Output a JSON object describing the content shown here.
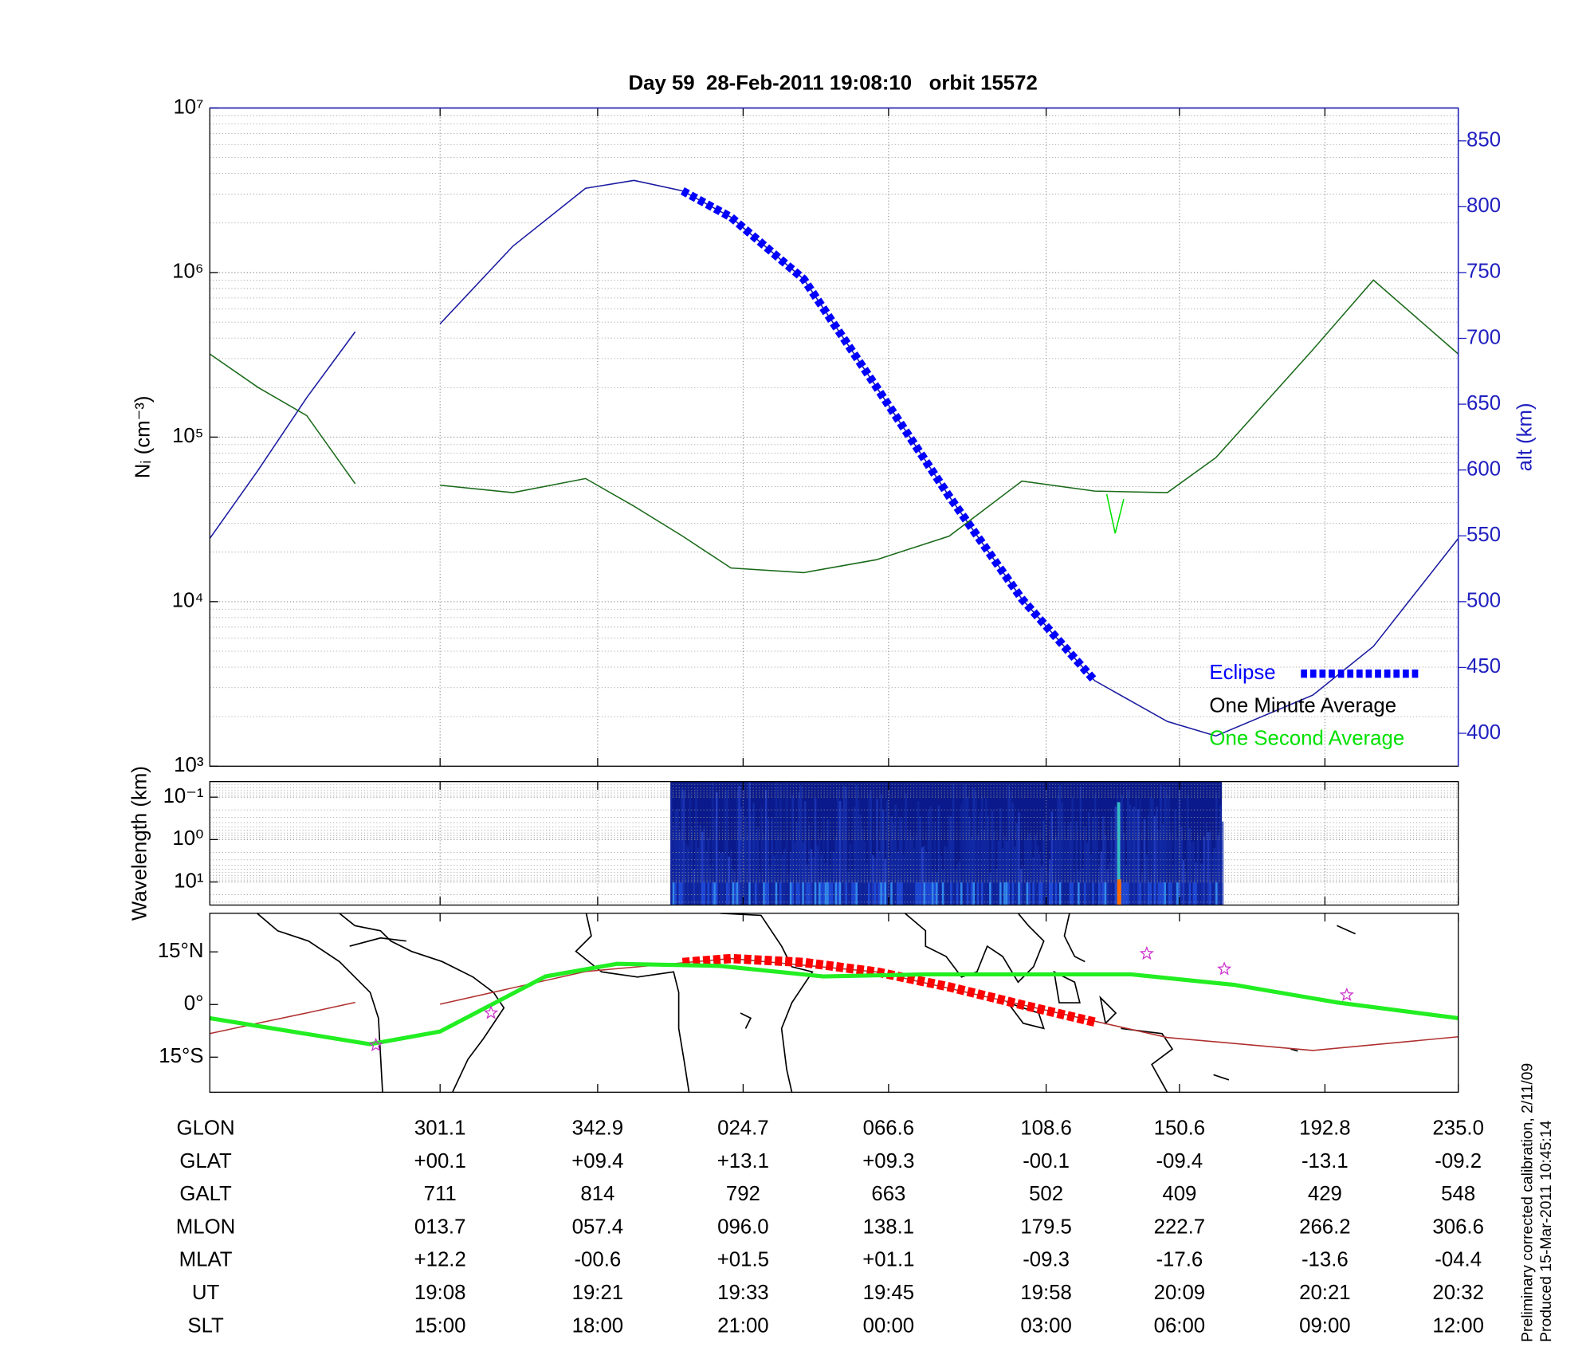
{
  "chart_data": [
    {
      "type": "line",
      "title": "Day 59  28-Feb-2011 19:08:10   orbit 15572",
      "ylabel": "Nᵢ (cm⁻³)",
      "y2label": "alt (km)",
      "log_y": true,
      "grid": true,
      "legend": "lower right",
      "xlim": [
        1129,
        1232
      ],
      "xticks": [
        {
          "value": 1148,
          "label": "19:08"
        },
        {
          "value": 1161,
          "label": "19:21"
        },
        {
          "value": 1173,
          "label": "19:33"
        },
        {
          "value": 1185,
          "label": "19:45"
        },
        {
          "value": 1198,
          "label": "19:58"
        },
        {
          "value": 1209,
          "label": "20:09"
        },
        {
          "value": 1221,
          "label": "20:21"
        },
        {
          "value": 1232,
          "label": "20:32"
        }
      ],
      "ylim": [
        1000,
        10000000
      ],
      "yticks": [
        {
          "value": 1000,
          "label": "10³"
        },
        {
          "value": 10000,
          "label": "10⁴"
        },
        {
          "value": 100000,
          "label": "10⁵"
        },
        {
          "value": 1000000,
          "label": "10⁶"
        },
        {
          "value": 10000000,
          "label": "10⁷"
        }
      ],
      "y2lim": [
        375,
        875
      ],
      "y2ticks": [
        400,
        450,
        500,
        550,
        600,
        650,
        700,
        750,
        800,
        850
      ],
      "y2color": "#2020c0",
      "x": [
        1129,
        1133,
        1137,
        1141,
        1144,
        1148,
        1154,
        1160,
        1164,
        1168,
        1172,
        1178,
        1184,
        1190,
        1196,
        1202,
        1208,
        1212,
        1220,
        1225,
        1232
      ],
      "series": [
        {
          "color": "#1a1aa0",
          "axis": "y2",
          "values": [
            548,
            600,
            655,
            705,
            null,
            711,
            770,
            814,
            820,
            812,
            792,
            745,
            663,
            580,
            502,
            440,
            409,
            398,
            429,
            466,
            548
          ]
        },
        {
          "name": "Eclipse",
          "color": "#0000ff",
          "axis": "y2",
          "dashed": true,
          "x": [
            1168,
            1172,
            1178,
            1184,
            1190,
            1196,
            1202
          ],
          "values": [
            812,
            792,
            745,
            663,
            580,
            502,
            440
          ]
        },
        {
          "name": "One Minute Average",
          "color": "#1a6a1a",
          "legend_color": "#000000",
          "values": [
            320000,
            200000,
            135000,
            52000,
            null,
            51000,
            46000,
            56000,
            38000,
            25000,
            16000,
            15000,
            18000,
            25000,
            54000,
            47000,
            46000,
            75000,
            340000,
            900000,
            320000
          ]
        },
        {
          "name": "One Second Average",
          "color": "#00e000",
          "x": [
            1203,
            1203.7,
            1204.4
          ],
          "values": [
            45000,
            26000,
            42000
          ]
        }
      ]
    },
    {
      "type": "spectrogram",
      "ylabel": "Wavelength (km)",
      "log_y": true,
      "y_inverted": true,
      "grid": true,
      "xlim": [
        1129,
        1232
      ],
      "xticks": [
        1148,
        1161,
        1173,
        1185,
        1198,
        1209,
        1221,
        1232
      ],
      "ylim": [
        0.043,
        35
      ],
      "yticks": [
        {
          "value": 0.1,
          "label": "10⁻¹"
        },
        {
          "value": 1,
          "label": "10⁰"
        },
        {
          "value": 10,
          "label": "10¹"
        }
      ],
      "x": [
        1167,
        1212.5
      ]
    },
    {
      "type": "map",
      "xlim": [
        1129,
        1232
      ],
      "xticks": [
        1148,
        1161,
        1173,
        1185,
        1198,
        1209,
        1221,
        1232
      ],
      "ylim": [
        -25,
        26
      ],
      "yticks": [
        {
          "value": 15,
          "label": "15°N"
        },
        {
          "value": 0,
          "label": "0°"
        },
        {
          "value": -15,
          "label": "15°S"
        }
      ],
      "series": [
        {
          "color": "#b03030",
          "x": [
            1129,
            1133,
            1137,
            1141,
            1144,
            1148,
            1160,
            1172,
            1184,
            1196,
            1208,
            1220,
            1232
          ],
          "values": [
            -8.3,
            -5.3,
            -2.4,
            0.6,
            null,
            0.1,
            9.4,
            13.1,
            9.3,
            -0.1,
            -9.4,
            -13.1,
            -9.2
          ]
        },
        {
          "color": "#ff0000",
          "dashed": true,
          "x": [
            1168,
            1172,
            1178,
            1184,
            1190,
            1196,
            1202
          ],
          "values": [
            12,
            13.1,
            12,
            9.3,
            5,
            -0.1,
            -5
          ]
        },
        {
          "color": "#22ee22",
          "thick": true,
          "x": [
            1129,
            1142.2,
            1148,
            1156.7,
            1162.6,
            1171.1,
            1179.6,
            1188,
            1196.5,
            1205,
            1213.5,
            1222,
            1232
          ],
          "values": [
            -3.9,
            -11.3,
            -7.7,
            8,
            11.6,
            11,
            8,
            8.6,
            8.6,
            8.6,
            5.6,
            0.6,
            -3.9
          ]
        },
        {
          "color": "#cc33cc",
          "markers": "star",
          "x": [
            1142.7,
            1152.2,
            1206.3,
            1212.7,
            1222.8
          ],
          "values": [
            -11.6,
            -2.4,
            14.5,
            10.1,
            2.7
          ]
        }
      ]
    }
  ],
  "table": {
    "rows": [
      {
        "label": "GLON",
        "cells": [
          "301.1",
          "342.9",
          "024.7",
          "066.6",
          "108.6",
          "150.6",
          "192.8",
          "235.0"
        ]
      },
      {
        "label": "GLAT",
        "cells": [
          "+00.1",
          "+09.4",
          "+13.1",
          "+09.3",
          "-00.1",
          "-09.4",
          "-13.1",
          "-09.2"
        ]
      },
      {
        "label": "GALT",
        "cells": [
          "711",
          "814",
          "792",
          "663",
          "502",
          "409",
          "429",
          "548"
        ]
      },
      {
        "label": "MLON",
        "cells": [
          "013.7",
          "057.4",
          "096.0",
          "138.1",
          "179.5",
          "222.7",
          "266.2",
          "306.6"
        ]
      },
      {
        "label": "MLAT",
        "cells": [
          "+12.2",
          "-00.6",
          "+01.5",
          "+01.1",
          "-09.3",
          "-17.6",
          "-13.6",
          "-04.4"
        ]
      },
      {
        "label": "UT"
      },
      {
        "label": "SLT",
        "cells": [
          "15:00",
          "18:00",
          "21:00",
          "00:00",
          "03:00",
          "06:00",
          "09:00",
          "12:00"
        ]
      }
    ]
  },
  "notes": [
    "Preliminary corrected calibration, 2/11/09",
    "Produced 15-Mar-2011 10:45:14"
  ]
}
